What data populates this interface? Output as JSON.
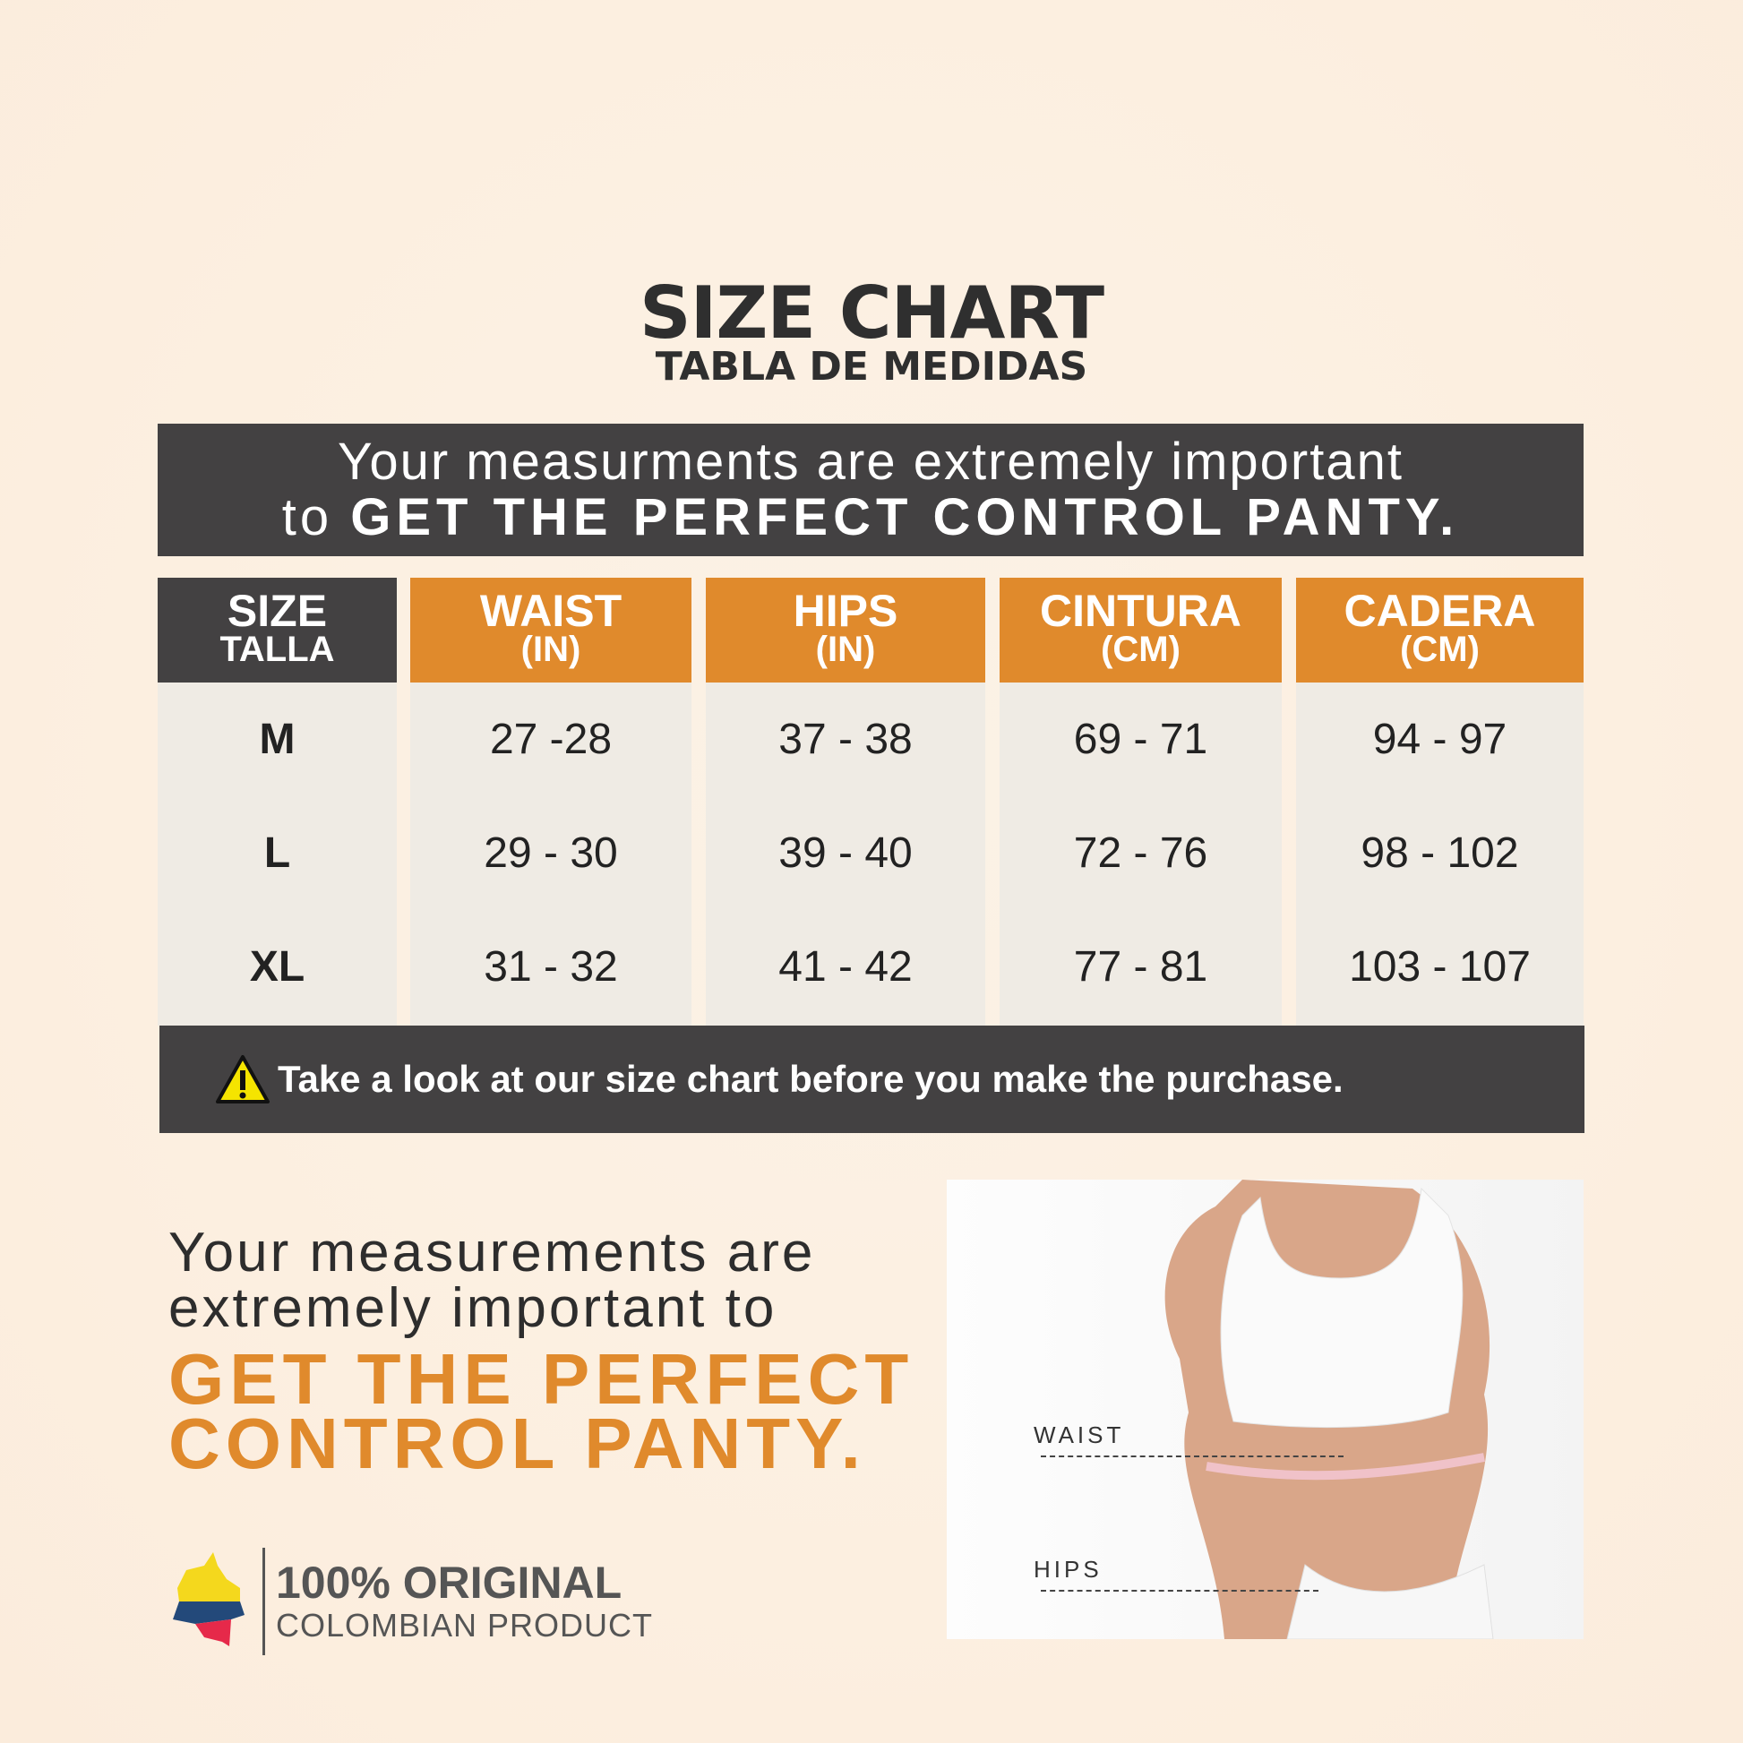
{
  "header": {
    "title": "SIZE CHART",
    "subtitle": "TABLA DE MEDIDAS"
  },
  "banner": {
    "line1": "Your measurments are extremely important",
    "line2_prefix": "to",
    "line2_bold": "GET THE PERFECT CONTROL PANTY."
  },
  "table": {
    "columns": [
      {
        "title": "SIZE",
        "subtitle": "TALLA",
        "color": "#434142"
      },
      {
        "title": "WAIST",
        "subtitle": "(IN)",
        "color": "#e08a2c"
      },
      {
        "title": "HIPS",
        "subtitle": "(IN)",
        "color": "#e08a2c"
      },
      {
        "title": "CINTURA",
        "subtitle": "(CM)",
        "color": "#e08a2c"
      },
      {
        "title": "CADERA",
        "subtitle": "(CM)",
        "color": "#e08a2c"
      }
    ],
    "rows": [
      [
        "M",
        "27 -28",
        "37 - 38",
        "69 - 71",
        "94 - 97"
      ],
      [
        "L",
        "29 - 30",
        "39 - 40",
        "72 - 76",
        "98 - 102"
      ],
      [
        "XL",
        "31 - 32",
        "41 - 42",
        "77 - 81",
        "103 - 107"
      ]
    ]
  },
  "warning": {
    "icon": "warning-icon",
    "text": "Take a look at our size chart before you make the purchase."
  },
  "promo": {
    "line1": "Your measurements are",
    "line2": "extremely important to",
    "bold1": "GET THE PERFECT",
    "bold2": "CONTROL PANTY."
  },
  "photo": {
    "waist_label": "WAIST",
    "hips_label": "HIPS"
  },
  "badge": {
    "title": "100% ORIGINAL",
    "subtitle": "COLOMBIAN PRODUCT"
  },
  "colors": {
    "accent": "#e08a2c",
    "dark": "#434142",
    "cell": "#efebe4"
  }
}
